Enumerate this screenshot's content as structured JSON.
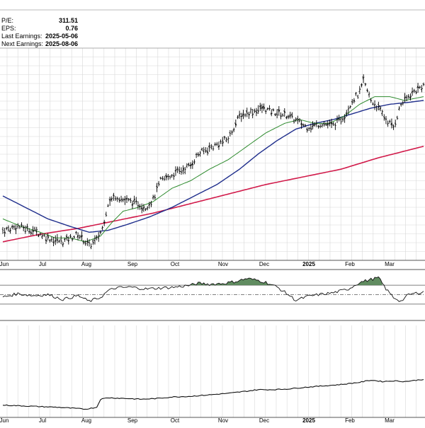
{
  "fundamentals": [
    {
      "label": "P/E:",
      "value": "311.51"
    },
    {
      "label": "EPS:",
      "value": "0.76"
    },
    {
      "label": "Last Earnings:",
      "value": "2025-05-06"
    },
    {
      "label": "Next Earnings:",
      "value": "2025-08-06"
    }
  ],
  "colors": {
    "price_bars": "#000000",
    "sma_short": "#2e8b2e",
    "sma_mid": "#1f2e8c",
    "sma_long": "#d11a4a",
    "rsi_fill": "#4f7f4f",
    "grid": "#d8d8d8",
    "background": "#ffffff"
  },
  "chart_data": [
    {
      "type": "line",
      "panel": "price",
      "x_ticks": [
        "Jun",
        "Jul",
        "Aug",
        "Sep",
        "Oct",
        "Nov",
        "Dec",
        "2025",
        "Feb",
        "Mar"
      ],
      "y_range": [
        0,
        100
      ],
      "grid": true,
      "series": [
        {
          "role": "price-ohlc",
          "anchors": [
            [
              0,
              12
            ],
            [
              8,
              14
            ],
            [
              16,
              12
            ],
            [
              24,
              8
            ],
            [
              32,
              6
            ],
            [
              40,
              10
            ],
            [
              46,
              4
            ],
            [
              50,
              7
            ],
            [
              53,
              13
            ],
            [
              56,
              26
            ],
            [
              60,
              30
            ],
            [
              64,
              28
            ],
            [
              72,
              26
            ],
            [
              76,
              24
            ],
            [
              80,
              28
            ],
            [
              84,
              38
            ],
            [
              92,
              42
            ],
            [
              100,
              46
            ],
            [
              104,
              52
            ],
            [
              112,
              56
            ],
            [
              120,
              60
            ],
            [
              126,
              72
            ],
            [
              132,
              74
            ],
            [
              138,
              76
            ],
            [
              144,
              74
            ],
            [
              152,
              72
            ],
            [
              162,
              66
            ],
            [
              170,
              68
            ],
            [
              176,
              67
            ],
            [
              182,
              72
            ],
            [
              186,
              80
            ],
            [
              190,
              84
            ],
            [
              192,
              90
            ],
            [
              196,
              80
            ],
            [
              200,
              76
            ],
            [
              204,
              70
            ],
            [
              208,
              66
            ],
            [
              212,
              78
            ],
            [
              218,
              84
            ],
            [
              224,
              88
            ]
          ]
        },
        {
          "role": "sma-short",
          "anchors": [
            [
              0,
              18
            ],
            [
              10,
              14
            ],
            [
              20,
              11
            ],
            [
              28,
              8
            ],
            [
              36,
              8
            ],
            [
              44,
              6
            ],
            [
              52,
              9
            ],
            [
              58,
              16
            ],
            [
              64,
              22
            ],
            [
              72,
              24
            ],
            [
              80,
              27
            ],
            [
              90,
              34
            ],
            [
              100,
              38
            ],
            [
              110,
              44
            ],
            [
              120,
              49
            ],
            [
              130,
              56
            ],
            [
              140,
              63
            ],
            [
              150,
              68
            ],
            [
              158,
              70
            ],
            [
              166,
              68
            ],
            [
              174,
              68
            ],
            [
              182,
              72
            ],
            [
              190,
              78
            ],
            [
              198,
              82
            ],
            [
              206,
              82
            ],
            [
              214,
              80
            ],
            [
              224,
              82
            ]
          ]
        },
        {
          "role": "sma-mid",
          "anchors": [
            [
              0,
              30
            ],
            [
              12,
              24
            ],
            [
              24,
              18
            ],
            [
              36,
              14
            ],
            [
              46,
              11
            ],
            [
              56,
              12
            ],
            [
              66,
              15
            ],
            [
              78,
              19
            ],
            [
              90,
              24
            ],
            [
              102,
              30
            ],
            [
              114,
              36
            ],
            [
              126,
              44
            ],
            [
              136,
              52
            ],
            [
              146,
              59
            ],
            [
              156,
              65
            ],
            [
              166,
              68
            ],
            [
              176,
              70
            ],
            [
              186,
              73
            ],
            [
              196,
              76
            ],
            [
              206,
              78
            ],
            [
              216,
              79
            ],
            [
              224,
              80
            ]
          ]
        },
        {
          "role": "sma-long",
          "anchors": [
            [
              0,
              6
            ],
            [
              20,
              10
            ],
            [
              40,
              13
            ],
            [
              60,
              17
            ],
            [
              80,
              21
            ],
            [
              100,
              26
            ],
            [
              120,
              31
            ],
            [
              140,
              36
            ],
            [
              160,
              40
            ],
            [
              180,
              44
            ],
            [
              200,
              50
            ],
            [
              224,
              56
            ]
          ]
        }
      ]
    },
    {
      "type": "area",
      "panel": "oscillator",
      "y_range": [
        0,
        100
      ],
      "reference_lines": [
        30,
        50,
        70
      ],
      "anchors": [
        [
          0,
          45
        ],
        [
          8,
          52
        ],
        [
          16,
          48
        ],
        [
          24,
          50
        ],
        [
          32,
          40
        ],
        [
          40,
          48
        ],
        [
          46,
          36
        ],
        [
          52,
          44
        ],
        [
          56,
          58
        ],
        [
          60,
          64
        ],
        [
          68,
          66
        ],
        [
          76,
          62
        ],
        [
          84,
          64
        ],
        [
          92,
          66
        ],
        [
          100,
          70
        ],
        [
          104,
          74
        ],
        [
          110,
          72
        ],
        [
          118,
          74
        ],
        [
          124,
          78
        ],
        [
          130,
          84
        ],
        [
          136,
          80
        ],
        [
          140,
          76
        ],
        [
          146,
          66
        ],
        [
          152,
          50
        ],
        [
          156,
          38
        ],
        [
          162,
          46
        ],
        [
          168,
          50
        ],
        [
          176,
          54
        ],
        [
          184,
          62
        ],
        [
          190,
          76
        ],
        [
          196,
          82
        ],
        [
          200,
          86
        ],
        [
          204,
          62
        ],
        [
          208,
          44
        ],
        [
          212,
          36
        ],
        [
          216,
          50
        ],
        [
          224,
          56
        ]
      ]
    },
    {
      "type": "line",
      "panel": "relative-strength",
      "y_range": [
        0,
        100
      ],
      "anchors": [
        [
          0,
          18
        ],
        [
          10,
          16
        ],
        [
          20,
          14
        ],
        [
          30,
          12
        ],
        [
          36,
          10
        ],
        [
          44,
          7
        ],
        [
          50,
          12
        ],
        [
          52,
          34
        ],
        [
          56,
          38
        ],
        [
          66,
          36
        ],
        [
          74,
          34
        ],
        [
          82,
          36
        ],
        [
          90,
          40
        ],
        [
          100,
          42
        ],
        [
          110,
          46
        ],
        [
          120,
          50
        ],
        [
          130,
          56
        ],
        [
          136,
          60
        ],
        [
          144,
          60
        ],
        [
          152,
          62
        ],
        [
          160,
          66
        ],
        [
          170,
          70
        ],
        [
          180,
          74
        ],
        [
          190,
          80
        ],
        [
          196,
          86
        ],
        [
          202,
          82
        ],
        [
          208,
          84
        ],
        [
          214,
          82
        ],
        [
          224,
          88
        ]
      ]
    }
  ]
}
